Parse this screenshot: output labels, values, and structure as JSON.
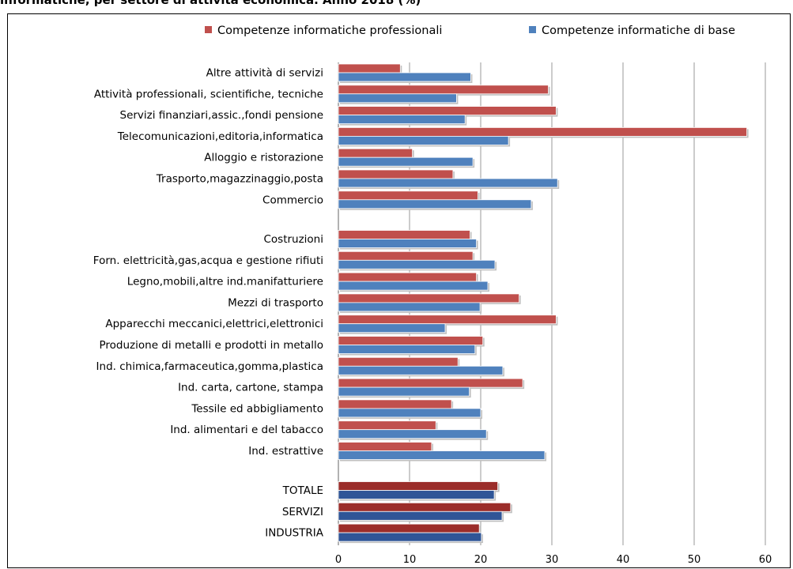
{
  "title": "informatiche, per settore di attività economica. Anno 2018 (%)",
  "colors": {
    "professionali": "#c0504d",
    "base": "#4f81bd",
    "professionali_totals": "#9b2d2a",
    "base_totals": "#2f5597"
  },
  "chart_data": {
    "type": "bar",
    "orientation": "horizontal",
    "title": "informatiche, per settore di attività economica. Anno 2018 (%)",
    "xlabel": "",
    "ylabel": "",
    "xlim": [
      0,
      60
    ],
    "xticks": [
      "0",
      "10",
      "20",
      "30",
      "40",
      "50",
      "60"
    ],
    "grid": "vertical",
    "legend_position": "top-right",
    "groups": [
      {
        "categories": [
          "Altre attività di servizi",
          "Attività professionali, scientifiche, tecniche",
          "Servizi finanziari,assic.,fondi pensione",
          "Telecomunicazioni,editoria,informatica",
          "Alloggio e ristorazione",
          "Trasporto,magazzinaggio,posta",
          "Commercio"
        ],
        "professionali": [
          8.7,
          29.5,
          30.6,
          57.4,
          10.4,
          16.1,
          19.6
        ],
        "base": [
          18.6,
          16.6,
          17.8,
          23.9,
          18.9,
          30.8,
          27.1
        ]
      },
      {
        "categories": [
          "Costruzioni",
          "Forn. elettricità,gas,acqua e gestione rifiuti",
          "Legno,mobili,altre ind.manifatturiere",
          "Mezzi di trasporto",
          "Apparecchi meccanici,elettrici,elettronici",
          "Produzione di metalli e prodotti in metallo",
          "Ind. chimica,farmaceutica,gomma,plastica",
          "Ind. carta, cartone, stampa",
          "Tessile ed abbigliamento",
          "Ind. alimentari e del tabacco",
          "Ind. estrattive"
        ],
        "professionali": [
          18.5,
          18.9,
          19.4,
          25.4,
          30.6,
          20.3,
          16.8,
          25.9,
          15.9,
          13.7,
          13.1
        ],
        "base": [
          19.4,
          22.0,
          21.0,
          19.9,
          15.0,
          19.2,
          23.1,
          18.4,
          20.0,
          20.8,
          29.0
        ]
      },
      {
        "categories": [
          "TOTALE",
          "SERVIZI",
          "INDUSTRIA"
        ],
        "professionali": [
          22.4,
          24.2,
          19.8
        ],
        "base": [
          21.9,
          23.0,
          20.1
        ],
        "highlight": true
      }
    ],
    "series": [
      {
        "name": "Competenze informatiche professionali",
        "key": "professionali"
      },
      {
        "name": "Competenze informatiche di base",
        "key": "base"
      }
    ]
  }
}
